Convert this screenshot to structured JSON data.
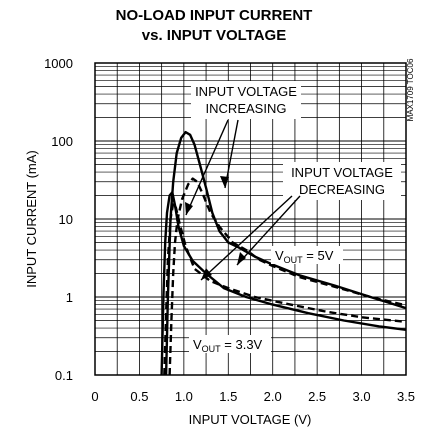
{
  "chart_data": {
    "type": "line",
    "title": "NO-LOAD INPUT CURRENT",
    "subtitle": "vs. INPUT VOLTAGE",
    "figure_code": "MAX1709 TOC06",
    "xlabel": "INPUT VOLTAGE (V)",
    "ylabel": "INPUT CURRENT (mA)",
    "xlim": [
      0,
      3.5
    ],
    "ylim": [
      0.1,
      1000
    ],
    "y_scale": "log",
    "grid": true,
    "x_ticks": [
      "0",
      "0.5",
      "1.0",
      "1.5",
      "2.0",
      "2.5",
      "3.0",
      "3.5"
    ],
    "y_ticks": [
      "0.1",
      "1",
      "10",
      "100",
      "1000"
    ],
    "annotations": {
      "increasing_line1": "INPUT VOLTAGE",
      "increasing_line2": "INCREASING",
      "decreasing_line1": "INPUT VOLTAGE",
      "decreasing_line2": "DECREASING",
      "vout5_prefix": "V",
      "vout5_sub": "OUT",
      "vout5_suffix": " = 5V",
      "vout33_prefix": "V",
      "vout33_sub": "OUT",
      "vout33_suffix": " = 3.3V"
    },
    "series": [
      {
        "style": "solid",
        "x": [
          0.8,
          0.82,
          0.85,
          0.88,
          0.92,
          0.97,
          1.02,
          1.07,
          1.12,
          1.18,
          1.25,
          1.32,
          1.4,
          1.5,
          1.62,
          1.8,
          2.0,
          2.3,
          2.7,
          3.1,
          3.5
        ],
        "y": [
          0.1,
          1,
          10,
          30,
          70,
          110,
          130,
          120,
          90,
          50,
          25,
          12,
          7,
          5,
          4.3,
          3.3,
          2.6,
          1.9,
          1.4,
          1.0,
          0.72
        ]
      },
      {
        "style": "solid",
        "x": [
          0.75,
          0.77,
          0.79,
          0.81,
          0.84,
          0.87,
          0.9,
          0.94,
          1.0,
          1.1,
          1.25,
          1.45,
          1.7,
          2.0,
          2.4,
          2.8,
          3.2,
          3.5
        ],
        "y": [
          0.1,
          1,
          5,
          12,
          20,
          22,
          15,
          8,
          4.5,
          2.9,
          2.0,
          1.3,
          1.0,
          0.8,
          0.62,
          0.5,
          0.42,
          0.38
        ]
      },
      {
        "style": "dashed",
        "x": [
          0.84,
          0.86,
          0.88,
          0.9,
          0.93,
          0.98,
          1.05,
          1.1,
          1.15,
          1.22,
          1.3,
          1.4,
          1.55,
          1.7,
          1.85,
          2.0,
          2.3,
          2.7,
          3.1,
          3.5
        ],
        "y": [
          0.1,
          0.5,
          2,
          5,
          10,
          18,
          28,
          33,
          30,
          20,
          12,
          8,
          5,
          4,
          3,
          2.5,
          1.8,
          1.35,
          1.0,
          0.78
        ]
      },
      {
        "style": "dashed",
        "x": [
          0.78,
          0.8,
          0.82,
          0.85,
          0.88,
          0.91,
          0.95,
          1.02,
          1.12,
          1.3,
          1.5,
          1.8,
          2.2,
          2.6,
          3.0,
          3.5
        ],
        "y": [
          0.1,
          0.6,
          3,
          10,
          16,
          14,
          9,
          4.5,
          2.3,
          1.6,
          1.3,
          1.0,
          0.8,
          0.65,
          0.55,
          0.48
        ]
      }
    ]
  }
}
